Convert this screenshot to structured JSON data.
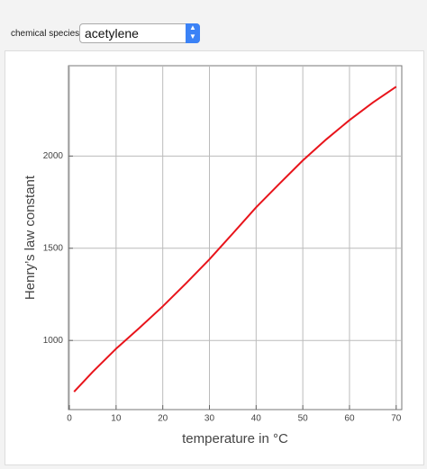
{
  "controls": {
    "label": "chemical species",
    "selected": "acetylene"
  },
  "chart_data": {
    "type": "line",
    "xlabel": "temperature in °C",
    "ylabel": "Henry’s law constant",
    "x": [
      1,
      5,
      10,
      15,
      20,
      25,
      30,
      35,
      40,
      45,
      50,
      55,
      60,
      65,
      70
    ],
    "values": [
      722,
      830,
      955,
      1068,
      1185,
      1310,
      1440,
      1580,
      1722,
      1850,
      1976,
      2090,
      2195,
      2290,
      2376
    ],
    "color": "#e8141b",
    "xlim": [
      -0.2,
      71.2
    ],
    "xticks": [
      0,
      10,
      20,
      30,
      40,
      50,
      60,
      70
    ],
    "ylim": [
      625,
      2490
    ],
    "yticks": [
      1000,
      1500,
      2000
    ],
    "grid": true
  }
}
